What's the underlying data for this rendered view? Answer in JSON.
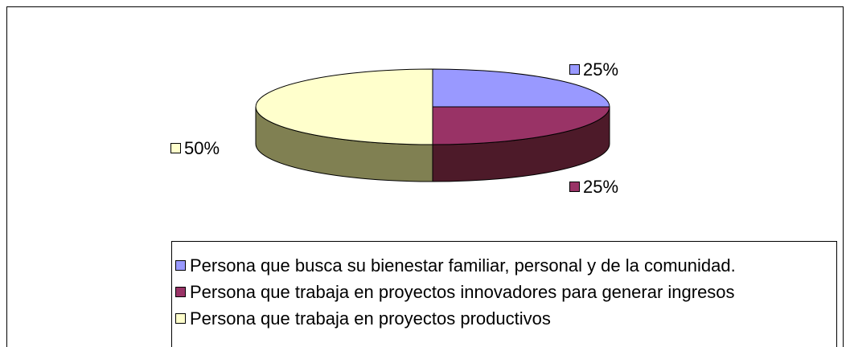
{
  "chart_data": {
    "type": "pie",
    "categories": [
      "Persona que busca su bienestar familiar, personal y de la comunidad.",
      "Persona que trabaja en proyectos innovadores para generar ingresos",
      "Persona que trabaja en proyectos productivos"
    ],
    "values": [
      25,
      25,
      50
    ],
    "value_labels": [
      "25%",
      "25%",
      "50%"
    ],
    "colors": [
      "#9999ff",
      "#993366",
      "#ffffcc"
    ],
    "legend": "bottom"
  }
}
